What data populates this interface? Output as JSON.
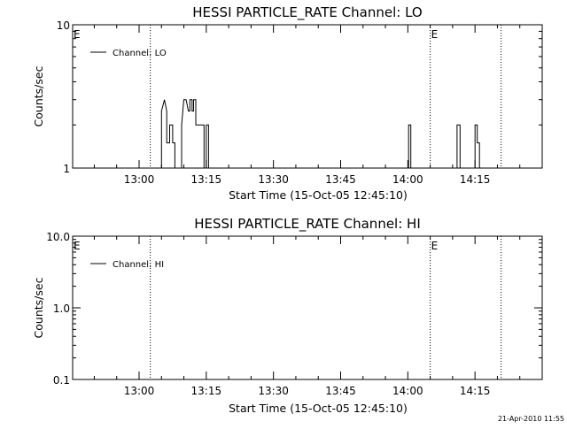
{
  "footer_timestamp": "21-Apr-2010 11:55",
  "chart_data": [
    {
      "type": "line",
      "title": "HESSI PARTICLE_RATE Channel: LO",
      "xlabel": "Start Time (15-Oct-05 12:45:10)",
      "ylabel": "Counts/sec",
      "y_scale": "log",
      "ylim": [
        1,
        10
      ],
      "y_ticks": [
        1,
        10
      ],
      "y_tick_labels": [
        "1",
        "10"
      ],
      "xlim": [
        "12:45:10",
        "14:30:00"
      ],
      "x_ticks": [
        "13:00",
        "13:15",
        "13:30",
        "13:45",
        "14:00",
        "14:15"
      ],
      "event_marker_times": [
        "13:02:30",
        "14:05:00",
        "14:20:50"
      ],
      "event_label_times": [
        "12:45:10",
        "14:05:00"
      ],
      "event_label": "E",
      "legend": "top-left",
      "series": [
        {
          "name": "Channel: LO",
          "x": [
            "12:45:10",
            "13:05:00",
            "13:05:00",
            "13:05:40",
            "13:06:10",
            "13:06:10",
            "13:06:50",
            "13:06:50",
            "13:07:30",
            "13:07:30",
            "13:08:00",
            "13:08:00",
            "13:09:30",
            "13:09:30",
            "13:10:00",
            "13:10:30",
            "13:11:00",
            "13:11:20",
            "13:11:20",
            "13:11:50",
            "13:11:50",
            "13:12:10",
            "13:12:10",
            "13:12:40",
            "13:12:40",
            "13:14:30",
            "13:14:30",
            "13:15:00",
            "13:15:00",
            "13:15:30",
            "13:15:30",
            "13:16:00",
            "14:00:10",
            "14:00:10",
            "14:00:40",
            "14:00:40",
            "14:11:00",
            "14:11:00",
            "14:11:40",
            "14:11:40",
            "14:15:00",
            "14:15:00",
            "14:15:30",
            "14:15:30",
            "14:16:00",
            "14:16:00",
            "14:30:00"
          ],
          "y": [
            1,
            1,
            2.5,
            3,
            2.5,
            1.5,
            1.5,
            2,
            2,
            1.5,
            1.5,
            1,
            1,
            2,
            3,
            3,
            2.5,
            2.5,
            3,
            3,
            2.5,
            2.5,
            3,
            3,
            2,
            2,
            1,
            1,
            2,
            2,
            1,
            1,
            1,
            2,
            2,
            1,
            1,
            2,
            2,
            1,
            1,
            2,
            2,
            1.5,
            1.5,
            1,
            1
          ]
        }
      ]
    },
    {
      "type": "line",
      "title": "HESSI PARTICLE_RATE Channel: HI",
      "xlabel": "Start Time (15-Oct-05 12:45:10)",
      "ylabel": "Counts/sec",
      "y_scale": "log",
      "ylim": [
        0.1,
        10
      ],
      "y_ticks": [
        0.1,
        1,
        10
      ],
      "y_tick_labels": [
        "0.1",
        "1.0",
        "10.0"
      ],
      "xlim": [
        "12:45:10",
        "14:30:00"
      ],
      "x_ticks": [
        "13:00",
        "13:15",
        "13:30",
        "13:45",
        "14:00",
        "14:15"
      ],
      "event_marker_times": [
        "13:02:30",
        "14:05:00",
        "14:20:50"
      ],
      "event_label_times": [
        "12:45:10",
        "14:05:00"
      ],
      "event_label": "E",
      "legend": "top-left",
      "series": [
        {
          "name": "Channel: HI",
          "x": [],
          "y": []
        }
      ]
    }
  ]
}
